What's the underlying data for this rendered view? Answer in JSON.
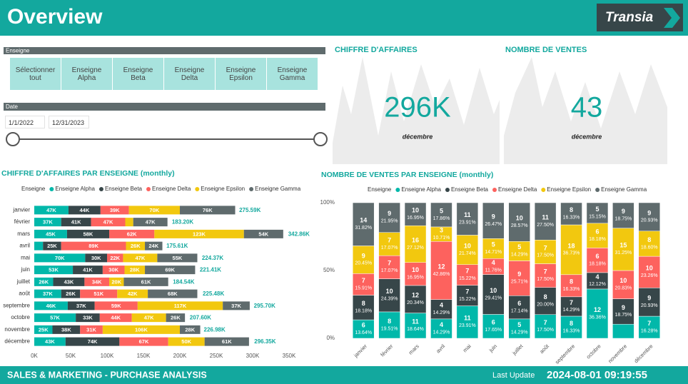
{
  "header": {
    "title": "Overview",
    "logo": "Transia"
  },
  "filters": {
    "enseigne_label": "Enseigne",
    "buttons": [
      "Sélectionner tout",
      "Enseigne Alpha",
      "Enseigne Beta",
      "Enseigne Delta",
      "Enseigne Epsilon",
      "Enseigne Gamma"
    ],
    "date_label": "Date",
    "date_start": "1/1/2022",
    "date_end": "12/31/2023"
  },
  "kpis": [
    {
      "title": "CHIFFRE D'AFFAIRES",
      "value": "296K",
      "subtitle": "décembre"
    },
    {
      "title": "NOMBRE DE VENTES",
      "value": "43",
      "subtitle": "décembre"
    }
  ],
  "chart_data": [
    {
      "type": "bar",
      "orientation": "horizontal",
      "stacked": true,
      "title": "CHIFFRE D'AFFAIRES PAR ENSEIGNE (monthly)",
      "legend_title": "Enseigne",
      "categories": [
        "janvier",
        "février",
        "mars",
        "avril",
        "mai",
        "juin",
        "juillet",
        "août",
        "septembre",
        "octobre",
        "novembre",
        "décembre"
      ],
      "series": [
        {
          "name": "Enseigne Alpha",
          "color": "#01B8AA",
          "values": [
            47000,
            37000,
            45000,
            12000,
            70000,
            53000,
            26000,
            37000,
            46000,
            57000,
            25000,
            43000
          ],
          "value_labels": [
            "47K",
            "37K",
            "45K",
            null,
            "70K",
            "53K",
            "26K",
            "37K",
            "46K",
            "57K",
            "25K",
            "43K"
          ]
        },
        {
          "name": "Enseigne Beta",
          "color": "#374649",
          "values": [
            44000,
            41000,
            58000,
            25000,
            30000,
            41000,
            43000,
            26000,
            37000,
            33000,
            38000,
            74000
          ],
          "value_labels": [
            "44K",
            "41K",
            "58K",
            "25K",
            "30K",
            "41K",
            "43K",
            "26K",
            "37K",
            "33K",
            "38K",
            "74K"
          ]
        },
        {
          "name": "Enseigne Delta",
          "color": "#FD625E",
          "values": [
            39000,
            47000,
            62000,
            89000,
            22000,
            30000,
            34000,
            51000,
            59000,
            44000,
            31000,
            67000
          ],
          "value_labels": [
            "39K",
            "47K",
            "62K",
            "89K",
            "22K",
            "30K",
            "34K",
            "51K",
            "59K",
            "44K",
            "31K",
            "67K"
          ]
        },
        {
          "name": "Enseigne Epsilon",
          "color": "#F2C80F",
          "values": [
            70000,
            11000,
            123000,
            26000,
            47000,
            28000,
            20000,
            42000,
            117000,
            47000,
            106000,
            50000
          ],
          "value_labels": [
            "70K",
            null,
            "123K",
            "26K",
            "47K",
            "28K",
            "20K",
            "42K",
            "117K",
            "47K",
            "106K",
            "50K"
          ]
        },
        {
          "name": "Enseigne Gamma",
          "color": "#5F6B6D",
          "values": [
            76000,
            47000,
            54000,
            24000,
            55000,
            69000,
            61000,
            68000,
            37000,
            26000,
            28000,
            61000
          ],
          "value_labels": [
            "76K",
            "47K",
            "54K",
            "24K",
            "55K",
            "69K",
            "61K",
            "68K",
            "37K",
            "26K",
            "28K",
            "61K"
          ]
        }
      ],
      "totals": [
        275590,
        183200,
        342860,
        175610,
        224370,
        221410,
        184540,
        225480,
        295700,
        207600,
        226980,
        296350
      ],
      "total_labels": [
        "275.59K",
        "183.20K",
        "342.86K",
        "175.61K",
        "224.37K",
        "221.41K",
        "184.54K",
        "225.48K",
        "295.70K",
        "207.60K",
        "226.98K",
        "296.35K"
      ],
      "xlim": [
        0,
        350000
      ],
      "xticks": [
        {
          "value": 0,
          "label": "0K"
        },
        {
          "value": 50000,
          "label": "50K"
        },
        {
          "value": 100000,
          "label": "100K"
        },
        {
          "value": 150000,
          "label": "150K"
        },
        {
          "value": 200000,
          "label": "200K"
        },
        {
          "value": 250000,
          "label": "250K"
        },
        {
          "value": 300000,
          "label": "300K"
        },
        {
          "value": 350000,
          "label": "350K"
        }
      ]
    },
    {
      "type": "bar",
      "orientation": "vertical",
      "stacked": true,
      "title": "NOMBRE DE VENTES PAR ENSEIGNE (monthly)",
      "legend_title": "Enseigne",
      "categories": [
        "janvier",
        "février",
        "mars",
        "avril",
        "mai",
        "juin",
        "juillet",
        "août",
        "septembre",
        "octobre",
        "novembre",
        "décembre"
      ],
      "series": [
        {
          "name": "Enseigne Alpha",
          "color": "#01B8AA",
          "values": [
            13.64,
            19.51,
            18.64,
            14.29,
            23.91,
            17.65,
            14.29,
            17.5,
            16.33,
            36.36,
            10.42,
            16.28
          ],
          "value_labels": [
            "13.64%",
            "19.51%",
            "18.64%",
            "14.29%",
            "23.91%",
            "17.65%",
            "14.29%",
            "17.50%",
            "16.33%",
            "36.36%",
            null,
            "16.28%"
          ],
          "counts": [
            6,
            8,
            11,
            4,
            11,
            6,
            5,
            7,
            8,
            12,
            null,
            7
          ]
        },
        {
          "name": "Enseigne Beta",
          "color": "#374649",
          "values": [
            18.18,
            24.39,
            20.34,
            14.29,
            15.22,
            29.41,
            17.14,
            20,
            14.29,
            12.12,
            18.75,
            20.93
          ],
          "value_labels": [
            "18.18%",
            "24.39%",
            "20.34%",
            "14.29%",
            "15.22%",
            "29.41%",
            "17.14%",
            "20.00%",
            "14.29%",
            "12.12%",
            "18.75%",
            "20.93%"
          ],
          "counts": [
            8,
            10,
            12,
            4,
            7,
            10,
            6,
            8,
            7,
            4,
            9,
            9
          ]
        },
        {
          "name": "Enseigne Delta",
          "color": "#FD625E",
          "values": [
            15.91,
            17.07,
            16.95,
            42.86,
            15.22,
            11.76,
            25.71,
            17.5,
            16.33,
            18.18,
            20.83,
            23.26
          ],
          "value_labels": [
            "15.91%",
            "17.07%",
            "16.95%",
            "42.86%",
            "15.22%",
            "11.76%",
            "25.71%",
            "17.50%",
            "16.33%",
            "18.18%",
            "20.83%",
            "23.26%"
          ],
          "counts": [
            7,
            7,
            10,
            12,
            7,
            4,
            9,
            7,
            8,
            6,
            10,
            10
          ]
        },
        {
          "name": "Enseigne Epsilon",
          "color": "#F2C80F",
          "values": [
            20.45,
            17.07,
            27.12,
            10.71,
            21.74,
            14.71,
            14.29,
            17.5,
            36.73,
            18.18,
            31.25,
            18.6
          ],
          "value_labels": [
            "20.45%",
            "17.07%",
            "27.12%",
            "10.71%",
            "21.74%",
            "14.71%",
            "14.29%",
            "17.50%",
            "36.73%",
            "18.18%",
            "31.25%",
            "18.60%"
          ],
          "counts": [
            9,
            7,
            16,
            3,
            10,
            5,
            5,
            7,
            18,
            6,
            15,
            8
          ]
        },
        {
          "name": "Enseigne Gamma",
          "color": "#5F6B6D",
          "values": [
            31.82,
            21.95,
            16.95,
            17.86,
            23.91,
            26.47,
            28.57,
            27.5,
            16.33,
            15.15,
            18.75,
            20.93
          ],
          "value_labels": [
            "31.82%",
            "21.95%",
            "16.95%",
            "17.86%",
            "23.91%",
            "26.47%",
            "28.57%",
            "27.50%",
            "16.33%",
            "15.15%",
            "18.75%",
            "20.93%"
          ],
          "counts": [
            14,
            9,
            10,
            5,
            11,
            9,
            10,
            11,
            8,
            5,
            9,
            9
          ]
        }
      ],
      "ylim": [
        0,
        100
      ],
      "yticks": [
        {
          "value": 0,
          "label": "0%"
        },
        {
          "value": 50,
          "label": "50%"
        },
        {
          "value": 100,
          "label": "100%"
        }
      ]
    }
  ],
  "footer": {
    "left": "SALES & MARKETING - PURCHASE ANALYSIS",
    "update_label": "Last Update",
    "update_value": "2024-08-01 09:19:55"
  }
}
